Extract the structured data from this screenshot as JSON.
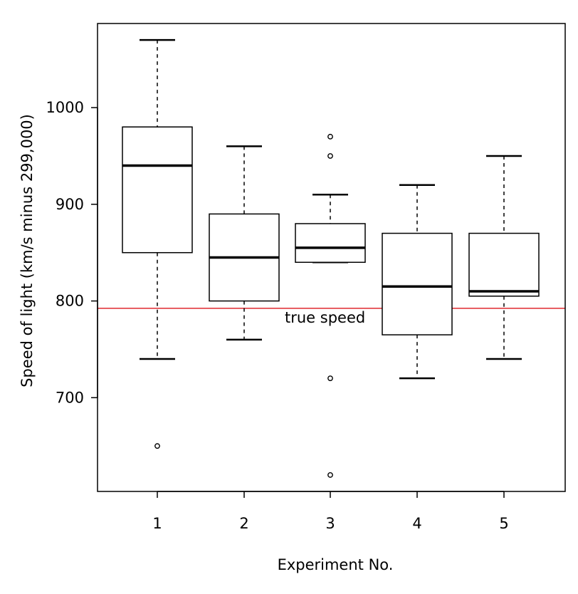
{
  "chart_data": {
    "type": "box",
    "title": "",
    "xlabel": "Experiment No.",
    "ylabel": "Speed of light (km/s minus 299,000)",
    "ylim": [
      603,
      1087
    ],
    "yticks": [
      700,
      800,
      900,
      1000
    ],
    "categories": [
      "1",
      "2",
      "3",
      "4",
      "5"
    ],
    "boxes": [
      {
        "category": "1",
        "whisker_low": 740,
        "q1": 850,
        "median": 940,
        "q3": 980,
        "whisker_high": 1070,
        "outliers": [
          650
        ]
      },
      {
        "category": "2",
        "whisker_low": 760,
        "q1": 800,
        "median": 845,
        "q3": 890,
        "whisker_high": 960,
        "outliers": []
      },
      {
        "category": "3",
        "whisker_low": 840,
        "q1": 840,
        "median": 855,
        "q3": 880,
        "whisker_high": 910,
        "outliers": [
          620,
          720,
          950,
          970
        ]
      },
      {
        "category": "4",
        "whisker_low": 720,
        "q1": 765,
        "median": 815,
        "q3": 870,
        "whisker_high": 920,
        "outliers": []
      },
      {
        "category": "5",
        "whisker_low": 740,
        "q1": 805,
        "median": 810,
        "q3": 870,
        "whisker_high": 950,
        "outliers": []
      }
    ],
    "reference_line": {
      "value": 792.458,
      "label": "true speed",
      "color": "#e0282f"
    },
    "grid": false,
    "legend": "none",
    "colors": {
      "box": "#000000",
      "reference": "#e0282f"
    }
  }
}
